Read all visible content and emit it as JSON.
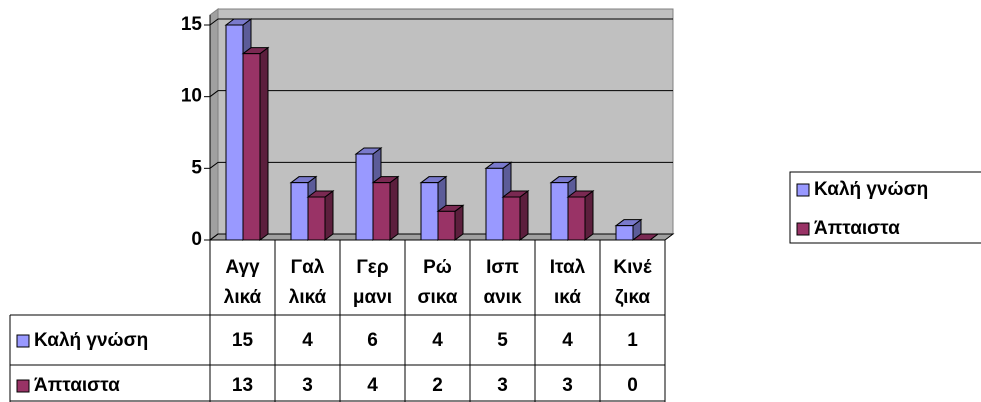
{
  "chart_data": {
    "type": "bar3d",
    "categories": [
      [
        "Αγγ",
        "λικά"
      ],
      [
        "Γαλ",
        "λικά"
      ],
      [
        "Γερ",
        "μανι"
      ],
      [
        "Ρώ",
        "σικα"
      ],
      [
        "Ισπ",
        "ανικ"
      ],
      [
        "Ιταλ",
        "ικά"
      ],
      [
        "Κινέ",
        "ζικα"
      ]
    ],
    "series": [
      {
        "name": "Καλή γνώση",
        "color": "#9999ff",
        "values": [
          15,
          4,
          6,
          4,
          5,
          4,
          1
        ]
      },
      {
        "name": "Άπταιστα",
        "color": "#993366",
        "values": [
          13,
          3,
          4,
          2,
          3,
          3,
          0
        ]
      }
    ],
    "ylim": [
      0,
      15
    ],
    "yticks": [
      0,
      5,
      10,
      15
    ],
    "grid": true,
    "legend": "right",
    "data_table": true
  }
}
